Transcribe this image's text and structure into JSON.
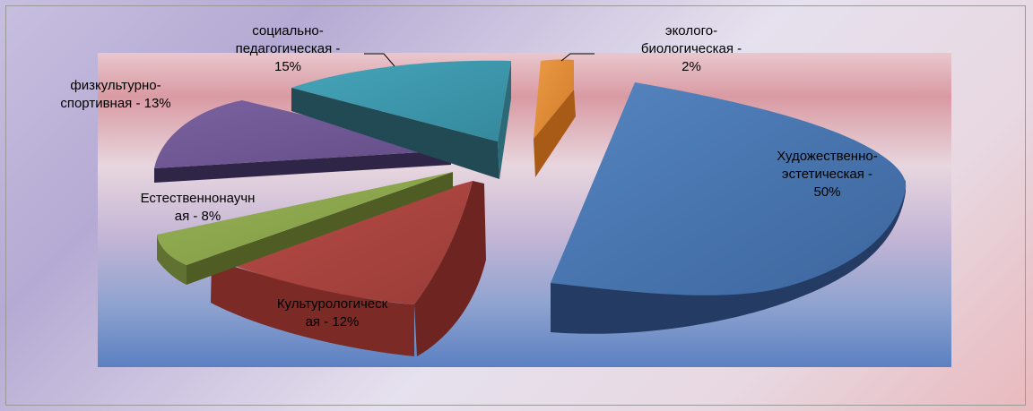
{
  "chart_data": {
    "type": "pie",
    "title": "",
    "slices": [
      {
        "label": "Художественно-\nэстетическая - \n50%",
        "value": 50,
        "color": "#4570a8"
      },
      {
        "label": "Культурологическ\nая - 12%",
        "value": 12,
        "color": "#a9443f"
      },
      {
        "label": "Естественнонаучн\nая - 8%",
        "value": 8,
        "color": "#8ba44c"
      },
      {
        "label": "физкультурно-\nспортивная - 13%",
        "value": 13,
        "color": "#6d5690"
      },
      {
        "label": "социально-\nпедагогическая - \n15%",
        "value": 15,
        "color": "#3b97ab"
      },
      {
        "label": "эколого-\nбиологическая - \n2%",
        "value": 2,
        "color": "#dc8430"
      }
    ]
  }
}
